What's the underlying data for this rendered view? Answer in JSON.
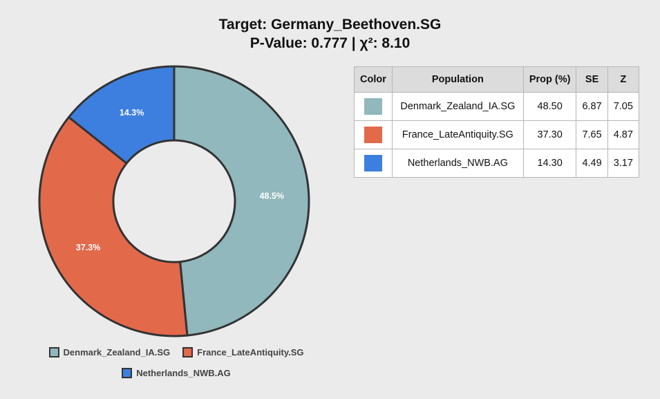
{
  "title_line1": "Target: Germany_Beethoven.SG",
  "title_line2": "P-Value: 0.777 | χ²: 8.10",
  "chart_data": {
    "type": "pie",
    "donut": true,
    "categories": [
      "Denmark_Zealand_IA.SG",
      "France_LateAntiquity.SG",
      "Netherlands_NWB.AG"
    ],
    "values": [
      48.5,
      37.3,
      14.3
    ],
    "labels": [
      "48.5%",
      "37.3%",
      "14.3%"
    ],
    "colors": [
      "#91b8bc",
      "#e3694b",
      "#3d7fdf"
    ],
    "legend_position": "bottom"
  },
  "legend": {
    "items": [
      {
        "label": "Denmark_Zealand_IA.SG",
        "color": "#91b8bc"
      },
      {
        "label": "France_LateAntiquity.SG",
        "color": "#e3694b"
      },
      {
        "label": "Netherlands_NWB.AG",
        "color": "#3d7fdf"
      }
    ]
  },
  "table": {
    "headers": [
      "Color",
      "Population",
      "Prop (%)",
      "SE",
      "Z"
    ],
    "rows": [
      {
        "color": "#91b8bc",
        "population": "Denmark_Zealand_IA.SG",
        "prop": "48.50",
        "se": "6.87",
        "z": "7.05"
      },
      {
        "color": "#e3694b",
        "population": "France_LateAntiquity.SG",
        "prop": "37.30",
        "se": "7.65",
        "z": "4.87"
      },
      {
        "color": "#3d7fdf",
        "population": "Netherlands_NWB.AG",
        "prop": "14.30",
        "se": "4.49",
        "z": "3.17"
      }
    ]
  }
}
